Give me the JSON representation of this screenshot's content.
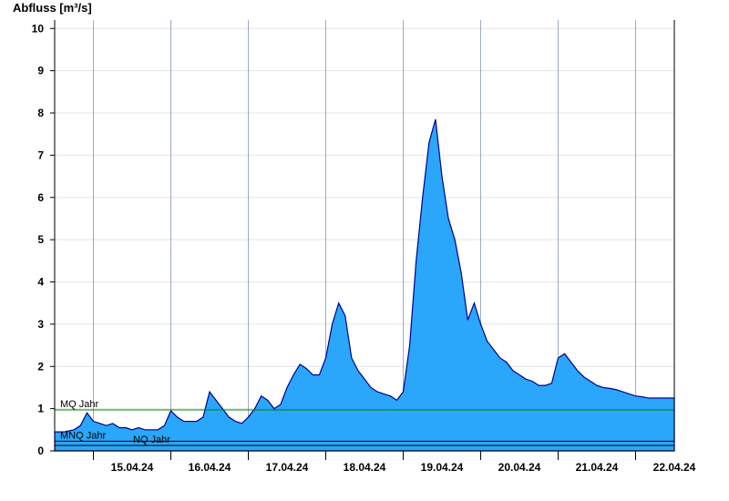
{
  "chart_data": {
    "type": "area",
    "ylabel": "Abfluss [m³/s]",
    "xlabel": "",
    "title": "",
    "ylim": [
      0,
      10.2
    ],
    "xlim": [
      "2024-04-14T12:00",
      "2024-04-22T12:00"
    ],
    "yticks": [
      0,
      1,
      2,
      3,
      4,
      5,
      6,
      7,
      8,
      9,
      10
    ],
    "ytick_labels": [
      "0",
      "1",
      "2",
      "3",
      "4",
      "5",
      "6",
      "7",
      "8",
      "9",
      "10"
    ],
    "xticks": [
      "15.04.24",
      "16.04.24",
      "17.04.24",
      "18.04.24",
      "19.04.24",
      "20.04.24",
      "21.04.24",
      "22.04.24"
    ],
    "grid": true,
    "area_color": "#2aa6fb",
    "line_color": "#00008b",
    "reference_lines": [
      {
        "name": "MQ Jahr",
        "value": 0.97,
        "color": "#008000"
      },
      {
        "name": "MNQ Jahr",
        "value": 0.23,
        "color": "#000000"
      },
      {
        "name": "NQ Jahr",
        "value": 0.13,
        "color": "#000000"
      }
    ],
    "series": [
      {
        "x": [
          "2024-04-14T12:00",
          "2024-04-14T15:00",
          "2024-04-14T18:00",
          "2024-04-14T20:00",
          "2024-04-14T22:00",
          "2024-04-15T00:00",
          "2024-04-15T02:00",
          "2024-04-15T04:00",
          "2024-04-15T06:00",
          "2024-04-15T08:00",
          "2024-04-15T10:00",
          "2024-04-15T12:00",
          "2024-04-15T14:00",
          "2024-04-15T16:00",
          "2024-04-15T18:00",
          "2024-04-15T20:00",
          "2024-04-15T22:00",
          "2024-04-16T00:00",
          "2024-04-16T02:00",
          "2024-04-16T04:00",
          "2024-04-16T06:00",
          "2024-04-16T08:00",
          "2024-04-16T10:00",
          "2024-04-16T12:00",
          "2024-04-16T14:00",
          "2024-04-16T16:00",
          "2024-04-16T18:00",
          "2024-04-16T20:00",
          "2024-04-16T22:00",
          "2024-04-17T00:00",
          "2024-04-17T02:00",
          "2024-04-17T04:00",
          "2024-04-17T06:00",
          "2024-04-17T08:00",
          "2024-04-17T10:00",
          "2024-04-17T12:00",
          "2024-04-17T14:00",
          "2024-04-17T16:00",
          "2024-04-17T18:00",
          "2024-04-17T20:00",
          "2024-04-17T22:00",
          "2024-04-18T00:00",
          "2024-04-18T02:00",
          "2024-04-18T04:00",
          "2024-04-18T06:00",
          "2024-04-18T08:00",
          "2024-04-18T10:00",
          "2024-04-18T12:00",
          "2024-04-18T14:00",
          "2024-04-18T16:00",
          "2024-04-18T18:00",
          "2024-04-18T20:00",
          "2024-04-18T22:00",
          "2024-04-19T00:00",
          "2024-04-19T02:00",
          "2024-04-19T04:00",
          "2024-04-19T06:00",
          "2024-04-19T08:00",
          "2024-04-19T10:00",
          "2024-04-19T12:00",
          "2024-04-19T14:00",
          "2024-04-19T16:00",
          "2024-04-19T18:00",
          "2024-04-19T20:00",
          "2024-04-19T22:00",
          "2024-04-20T00:00",
          "2024-04-20T02:00",
          "2024-04-20T04:00",
          "2024-04-20T06:00",
          "2024-04-20T08:00",
          "2024-04-20T10:00",
          "2024-04-20T12:00",
          "2024-04-20T14:00",
          "2024-04-20T16:00",
          "2024-04-20T18:00",
          "2024-04-20T20:00",
          "2024-04-20T22:00",
          "2024-04-21T00:00",
          "2024-04-21T02:00",
          "2024-04-21T04:00",
          "2024-04-21T06:00",
          "2024-04-21T08:00",
          "2024-04-21T10:00",
          "2024-04-21T12:00",
          "2024-04-21T14:00",
          "2024-04-21T16:00",
          "2024-04-21T18:00",
          "2024-04-21T20:00",
          "2024-04-21T22:00",
          "2024-04-22T00:00",
          "2024-04-22T02:00",
          "2024-04-22T04:00",
          "2024-04-22T06:00",
          "2024-04-22T08:00",
          "2024-04-22T10:00",
          "2024-04-22T12:00"
        ],
        "y": [
          0.45,
          0.45,
          0.5,
          0.6,
          0.9,
          0.7,
          0.65,
          0.6,
          0.65,
          0.55,
          0.55,
          0.5,
          0.55,
          0.5,
          0.5,
          0.5,
          0.6,
          0.95,
          0.8,
          0.7,
          0.7,
          0.7,
          0.8,
          1.4,
          1.2,
          1.0,
          0.8,
          0.7,
          0.65,
          0.8,
          1.0,
          1.3,
          1.2,
          1.0,
          1.1,
          1.5,
          1.8,
          2.05,
          1.95,
          1.8,
          1.8,
          2.2,
          3.0,
          3.5,
          3.2,
          2.2,
          1.9,
          1.7,
          1.5,
          1.4,
          1.35,
          1.3,
          1.2,
          1.4,
          2.5,
          4.5,
          6.0,
          7.3,
          7.85,
          6.5,
          5.5,
          5.0,
          4.2,
          3.1,
          3.5,
          3.0,
          2.6,
          2.4,
          2.2,
          2.1,
          1.9,
          1.8,
          1.7,
          1.65,
          1.55,
          1.55,
          1.6,
          2.2,
          2.3,
          2.1,
          1.9,
          1.75,
          1.65,
          1.55,
          1.5,
          1.48,
          1.45,
          1.4,
          1.35,
          1.3,
          1.28,
          1.25,
          1.25,
          1.25,
          1.25,
          1.25
        ]
      }
    ]
  }
}
